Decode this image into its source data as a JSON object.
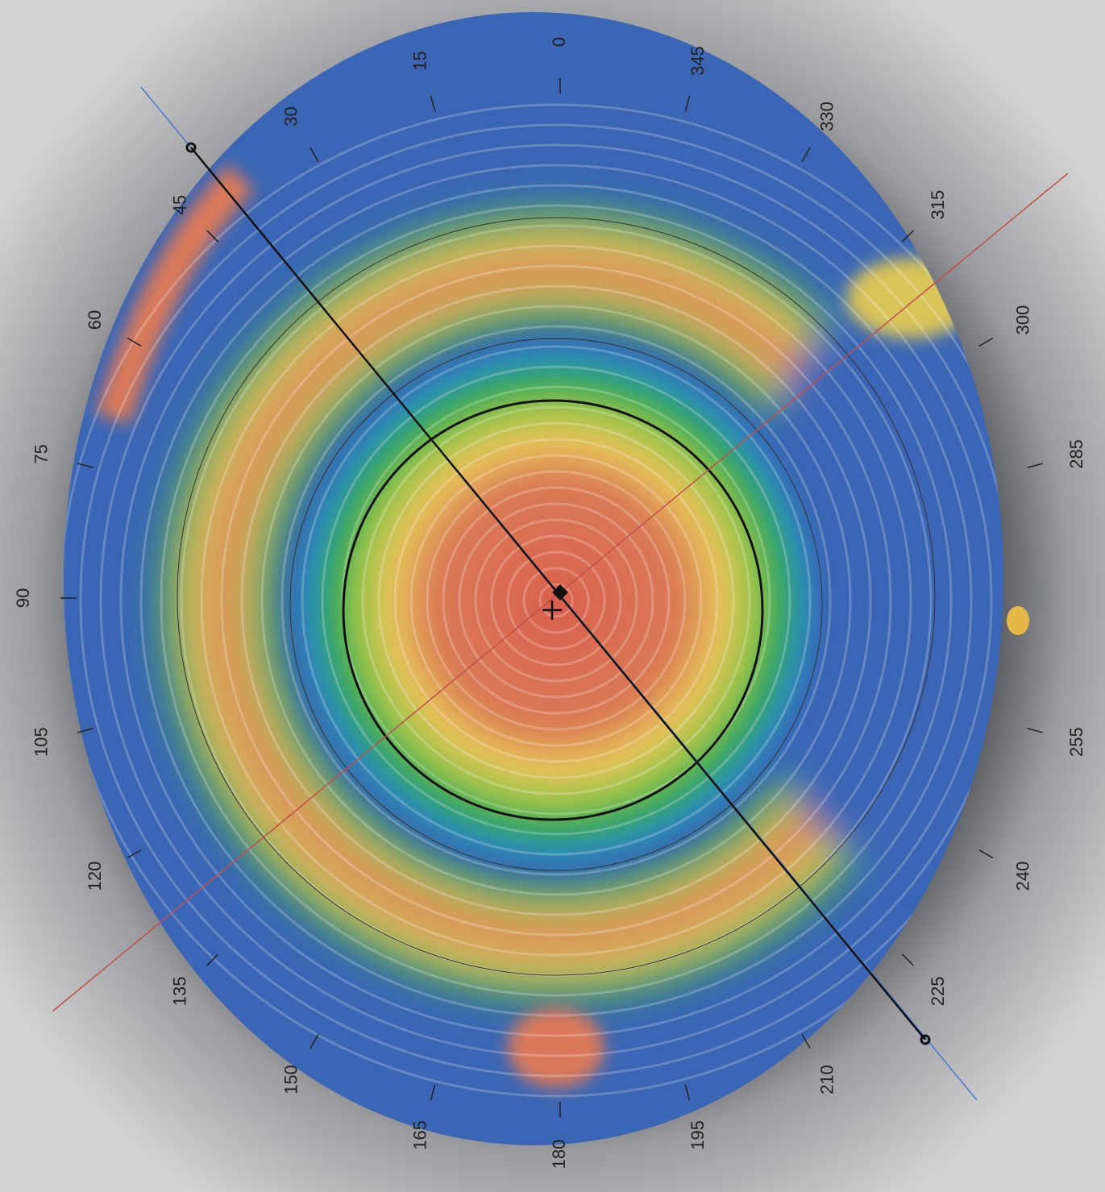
{
  "angle_labels": [
    "0",
    "15",
    "30",
    "45",
    "60",
    "75",
    "90",
    "105",
    "120",
    "135",
    "150",
    "165",
    "180",
    "195",
    "210",
    "225",
    "240",
    "255",
    null,
    "285",
    "300",
    "315",
    "330",
    "345"
  ]
}
